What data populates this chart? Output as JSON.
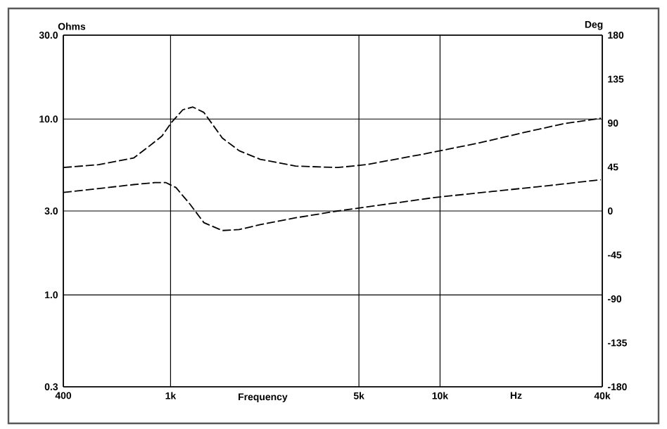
{
  "chart_data": {
    "type": "line",
    "xlabel": "Frequency",
    "ylabel": "Ohms",
    "y2label": "Deg",
    "annotations": [
      "Hz"
    ],
    "log": "xy",
    "grid": true,
    "line_style": "dashed",
    "xlim": [
      400,
      40000
    ],
    "ylim": [
      0.3,
      30
    ],
    "y2lim": [
      -180,
      180
    ],
    "xticks": [
      400,
      {
        "value": 1000,
        "label": "1k"
      },
      {
        "value": 5000,
        "label": "5k"
      },
      {
        "value": 10000,
        "label": "10k"
      },
      {
        "value": 40000,
        "label": "40k"
      }
    ],
    "yticks": [
      0.3,
      {
        "value": 1,
        "label": "1.0"
      },
      {
        "value": 3,
        "label": "3.0"
      },
      {
        "value": 10,
        "label": "10.0"
      },
      {
        "value": 30,
        "label": "30.0"
      }
    ],
    "y2ticks": [
      -180,
      -135,
      -90,
      -45,
      0,
      45,
      90,
      135,
      180
    ],
    "series": [
      {
        "color": "#000000",
        "x": [
          400,
          541,
          729,
          822,
          929,
          1010,
          1111,
          1210,
          1330,
          1556,
          1798,
          2153,
          2909,
          4170,
          5310,
          8590,
          13900,
          19900,
          28600,
          39500
        ],
        "values": [
          5.3,
          5.5,
          6.0,
          6.9,
          8.0,
          9.6,
          11.3,
          11.7,
          10.9,
          7.8,
          6.6,
          5.9,
          5.4,
          5.3,
          5.5,
          6.3,
          7.3,
          8.3,
          9.4,
          10.1
        ]
      },
      {
        "color": "#000000",
        "axis": "y2",
        "x": [
          400,
          541,
          729,
          873,
          962,
          1047,
          1180,
          1330,
          1556,
          1798,
          2153,
          2909,
          4170,
          5980,
          9680,
          15670,
          25350,
          39500
        ],
        "values": [
          19,
          23,
          27,
          29,
          29,
          24,
          7,
          -12,
          -20,
          -19,
          -14,
          -7,
          0,
          6,
          14,
          20,
          26,
          32
        ]
      }
    ]
  }
}
